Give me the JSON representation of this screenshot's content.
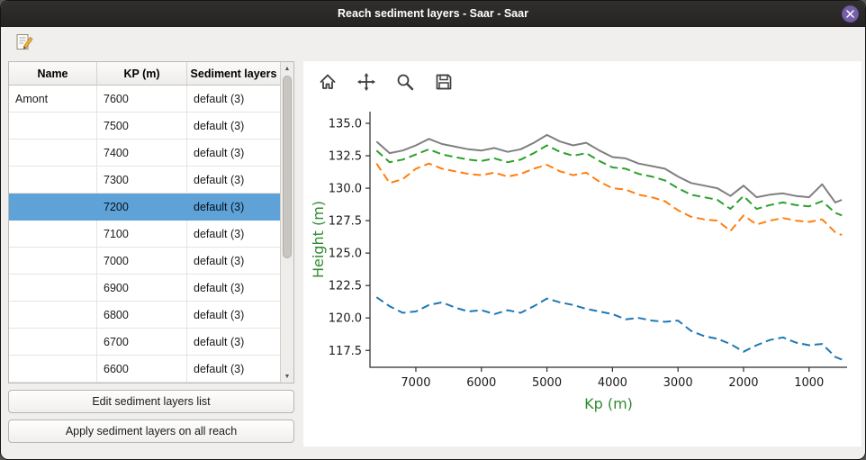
{
  "window": {
    "title": "Reach sediment layers - Saar - Saar"
  },
  "colors": {
    "selection": "#5ea2d8",
    "axis_label": "#2e8b2e"
  },
  "icons": {
    "scroll_up": "▲",
    "scroll_down": "▼"
  },
  "table": {
    "columns": [
      "Name",
      "KP (m)",
      "Sediment layers"
    ],
    "rows": [
      {
        "name": "Amont",
        "kp": "7600",
        "layers": "default (3)",
        "selected": false
      },
      {
        "name": "",
        "kp": "7500",
        "layers": "default (3)",
        "selected": false
      },
      {
        "name": "",
        "kp": "7400",
        "layers": "default (3)",
        "selected": false
      },
      {
        "name": "",
        "kp": "7300",
        "layers": "default (3)",
        "selected": false
      },
      {
        "name": "",
        "kp": "7200",
        "layers": "default (3)",
        "selected": true
      },
      {
        "name": "",
        "kp": "7100",
        "layers": "default (3)",
        "selected": false
      },
      {
        "name": "",
        "kp": "7000",
        "layers": "default (3)",
        "selected": false
      },
      {
        "name": "",
        "kp": "6900",
        "layers": "default (3)",
        "selected": false
      },
      {
        "name": "",
        "kp": "6800",
        "layers": "default (3)",
        "selected": false
      },
      {
        "name": "",
        "kp": "6700",
        "layers": "default (3)",
        "selected": false
      },
      {
        "name": "",
        "kp": "6600",
        "layers": "default (3)",
        "selected": false
      }
    ]
  },
  "buttons": {
    "edit": "Edit sediment layers list",
    "apply": "Apply sediment layers on all reach"
  },
  "plot_toolbar": {
    "buttons": [
      "home",
      "pan",
      "zoom",
      "save"
    ]
  },
  "chart_data": {
    "type": "line",
    "title": "",
    "xlabel": "Kp (m)",
    "ylabel": "Height (m)",
    "x_reversed": true,
    "xlim": [
      7700,
      420
    ],
    "ylim": [
      116.2,
      135.9
    ],
    "x_ticks": [
      7000,
      6000,
      5000,
      4000,
      3000,
      2000,
      1000
    ],
    "y_ticks": [
      117.5,
      120.0,
      122.5,
      125.0,
      127.5,
      130.0,
      132.5,
      135.0
    ],
    "grid": false,
    "legend": "none",
    "x": [
      7600,
      7400,
      7200,
      7000,
      6800,
      6600,
      6400,
      6200,
      6000,
      5800,
      5600,
      5400,
      5200,
      5000,
      4800,
      4600,
      4400,
      4200,
      4000,
      3800,
      3600,
      3400,
      3200,
      3000,
      2800,
      2600,
      2400,
      2200,
      2000,
      1800,
      1600,
      1400,
      1200,
      1000,
      800,
      600,
      500
    ],
    "series": [
      {
        "name": "surface-gray",
        "color": "#7f7f7f",
        "style": "solid",
        "values": [
          133.6,
          132.7,
          132.9,
          133.3,
          133.8,
          133.4,
          133.2,
          133.0,
          132.9,
          133.1,
          132.8,
          133.0,
          133.5,
          134.1,
          133.6,
          133.3,
          133.5,
          132.9,
          132.4,
          132.3,
          131.9,
          131.7,
          131.5,
          130.9,
          130.4,
          130.2,
          130.0,
          129.4,
          130.2,
          129.3,
          129.5,
          129.6,
          129.4,
          129.3,
          130.3,
          128.9,
          129.1
        ]
      },
      {
        "name": "layer-green",
        "color": "#2ca02c",
        "style": "dashed",
        "values": [
          132.9,
          132.0,
          132.2,
          132.6,
          133.0,
          132.6,
          132.4,
          132.2,
          132.1,
          132.3,
          132.0,
          132.2,
          132.7,
          133.3,
          132.8,
          132.5,
          132.7,
          132.1,
          131.6,
          131.5,
          131.1,
          130.9,
          130.6,
          130.0,
          129.5,
          129.3,
          129.1,
          128.4,
          129.4,
          128.4,
          128.7,
          128.9,
          128.7,
          128.6,
          129.0,
          128.1,
          127.9
        ]
      },
      {
        "name": "layer-orange",
        "color": "#ff7f0e",
        "style": "dashed",
        "values": [
          131.9,
          130.4,
          130.7,
          131.5,
          131.9,
          131.5,
          131.3,
          131.1,
          131.0,
          131.2,
          130.9,
          131.1,
          131.5,
          131.8,
          131.3,
          131.0,
          131.2,
          130.5,
          130.0,
          129.9,
          129.5,
          129.3,
          129.0,
          128.3,
          127.8,
          127.6,
          127.5,
          126.7,
          127.9,
          127.2,
          127.5,
          127.7,
          127.5,
          127.4,
          127.6,
          126.6,
          126.4
        ]
      },
      {
        "name": "bottom-blue",
        "color": "#1f77b4",
        "style": "dashed",
        "values": [
          121.6,
          120.9,
          120.4,
          120.5,
          121.0,
          121.2,
          120.8,
          120.5,
          120.6,
          120.3,
          120.6,
          120.4,
          120.9,
          121.5,
          121.2,
          121.0,
          120.7,
          120.5,
          120.3,
          119.9,
          120.0,
          119.8,
          119.7,
          119.8,
          119.0,
          118.6,
          118.4,
          118.0,
          117.4,
          117.9,
          118.3,
          118.5,
          118.1,
          117.9,
          118.0,
          117.0,
          116.8
        ]
      }
    ]
  }
}
